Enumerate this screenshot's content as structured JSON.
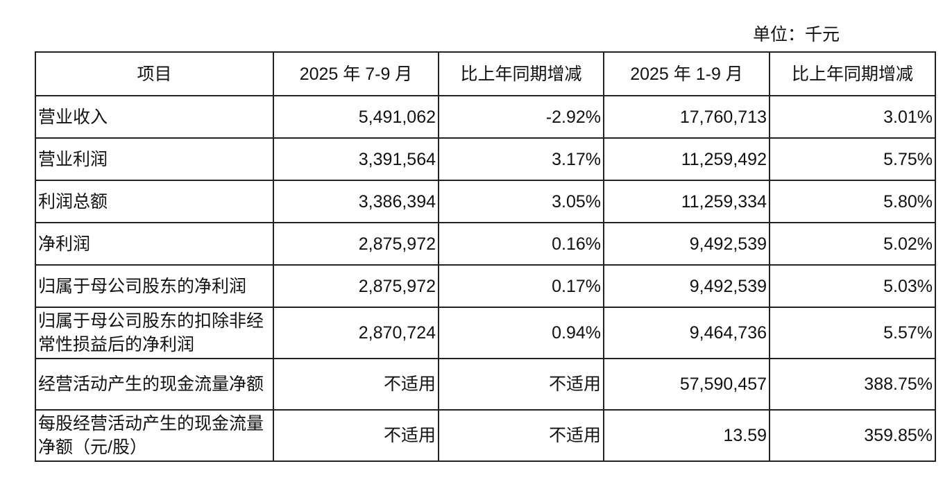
{
  "unit": "单位：千元",
  "table": {
    "headers": [
      "项目",
      "2025 年 7-9 月",
      "比上年同期增减",
      "2025 年 1-9 月",
      "比上年同期增减"
    ],
    "rows": [
      [
        "营业收入",
        "5,491,062",
        "-2.92%",
        "17,760,713",
        "3.01%"
      ],
      [
        "营业利润",
        "3,391,564",
        "3.17%",
        "11,259,492",
        "5.75%"
      ],
      [
        "利润总额",
        "3,386,394",
        "3.05%",
        "11,259,334",
        "5.80%"
      ],
      [
        "净利润",
        "2,875,972",
        "0.16%",
        "9,492,539",
        "5.02%"
      ],
      [
        "归属于母公司股东的净利润",
        "2,875,972",
        "0.17%",
        "9,492,539",
        "5.03%"
      ],
      [
        "归属于母公司股东的扣除非经常性损益后的净利润",
        "2,870,724",
        "0.94%",
        "9,464,736",
        "5.57%"
      ],
      [
        "经营活动产生的现金流量净额",
        "不适用",
        "不适用",
        "57,590,457",
        "388.75%"
      ],
      [
        "每股经营活动产生的现金流量净额（元/股）",
        "不适用",
        "不适用",
        "13.59",
        "359.85%"
      ]
    ]
  }
}
